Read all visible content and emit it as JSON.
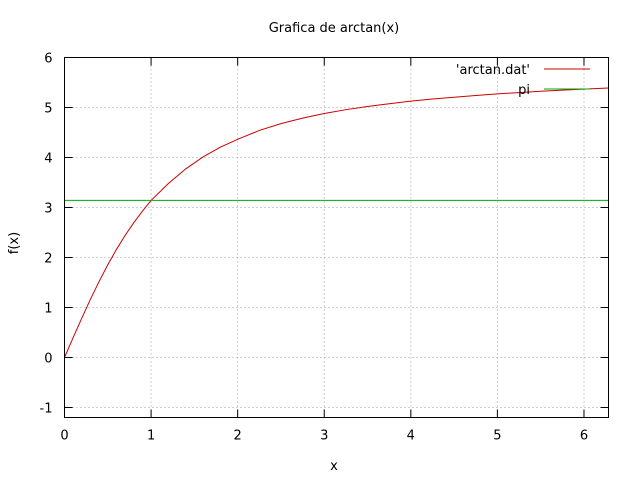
{
  "chart_data": {
    "type": "line",
    "title": "Grafica de arctan(x)",
    "xlabel": "x",
    "ylabel": "f(x)",
    "xlim": [
      0,
      6.2832
    ],
    "ylim": [
      -1.2,
      6
    ],
    "grid": true,
    "legend_position": "top-right",
    "x_ticks": [
      0,
      1,
      2,
      3,
      4,
      5,
      6
    ],
    "y_ticks": [
      -1,
      0,
      1,
      2,
      3,
      4,
      5,
      6
    ],
    "series": [
      {
        "name": "'arctan.dat'",
        "color": "#cc0000",
        "x": [
          0,
          0.1,
          0.2,
          0.3,
          0.4,
          0.5,
          0.6,
          0.7,
          0.8,
          0.9,
          1.0,
          1.2,
          1.4,
          1.6,
          1.8,
          2.0,
          2.25,
          2.5,
          2.75,
          3.0,
          3.25,
          3.5,
          3.75,
          4.0,
          4.25,
          4.5,
          4.75,
          5.0,
          5.25,
          5.5,
          5.75,
          6.0,
          6.2832
        ],
        "y": [
          0,
          0.3987,
          0.7895,
          1.1657,
          1.5216,
          1.8546,
          2.1613,
          2.4421,
          2.6964,
          2.9268,
          3.1416,
          3.4808,
          3.7717,
          4.0114,
          4.2072,
          4.3645,
          4.5409,
          4.6773,
          4.7873,
          4.8791,
          4.9561,
          5.0201,
          5.076,
          5.1266,
          5.1696,
          5.2062,
          5.2398,
          5.2722,
          5.2985,
          5.324,
          5.3471,
          5.367,
          5.389
        ]
      },
      {
        "name": "pi",
        "color": "#00aa00",
        "x": [
          0,
          6.2832
        ],
        "y": [
          3.1416,
          3.1416
        ]
      }
    ]
  }
}
